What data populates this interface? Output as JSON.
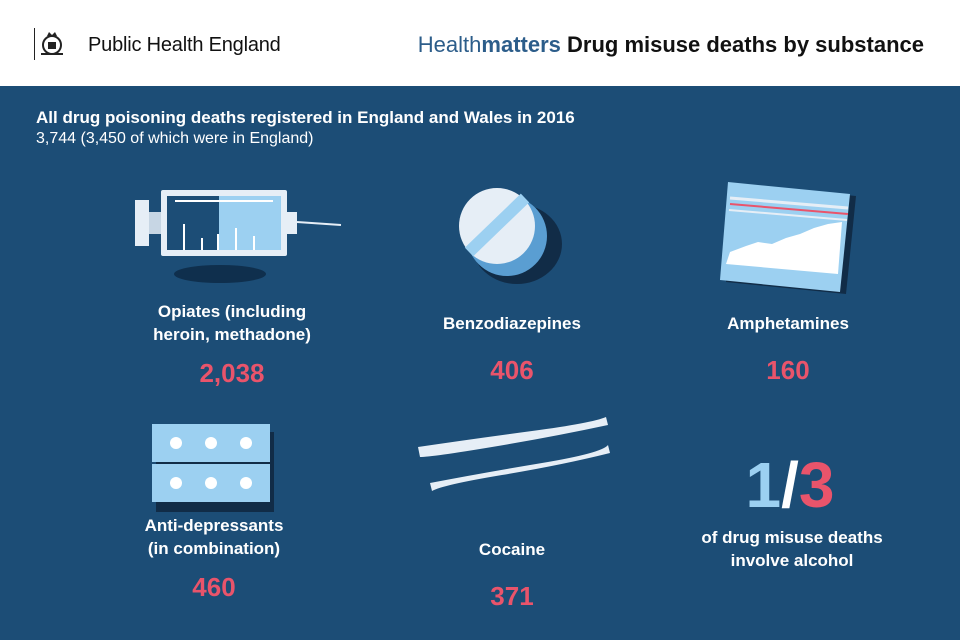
{
  "header": {
    "org_name": "Public Health England",
    "title_light": "Health",
    "title_brand": "matters",
    "title_topic": "Drug misuse deaths by substance"
  },
  "intro": {
    "title": "All drug poisoning deaths registered in England and Wales in 2016",
    "subtitle": "3,744 (3,450 of which were in England)"
  },
  "substances": [
    {
      "label_line1": "Opiates (including",
      "label_line2": "heroin, methadone)",
      "value": "2,038",
      "icon": "syringe-icon"
    },
    {
      "label_line1": "Benzodiazepines",
      "label_line2": "",
      "value": "406",
      "icon": "pill-icon"
    },
    {
      "label_line1": "Amphetamines",
      "label_line2": "",
      "value": "160",
      "icon": "powder-bag-icon"
    },
    {
      "label_line1": "Anti-depressants",
      "label_line2": "(in combination)",
      "value": "460",
      "icon": "blister-pack-icon"
    },
    {
      "label_line1": "Cocaine",
      "label_line2": "",
      "value": "371",
      "icon": "cocaine-lines-icon"
    }
  ],
  "alcohol": {
    "numerator": "1",
    "slash": "/",
    "denominator": "3",
    "text_line1": "of drug misuse deaths",
    "text_line2": "involve alcohol"
  },
  "colors": {
    "panel": "#1c4d76",
    "accent_pink": "#e9546b",
    "accent_light_blue": "#9cd0f1",
    "brand_blue": "#2c5d8a"
  }
}
